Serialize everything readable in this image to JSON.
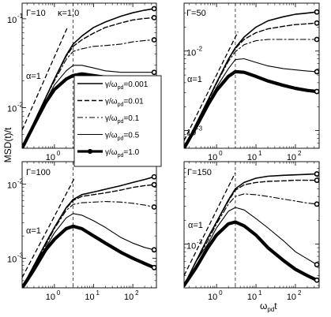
{
  "figure": {
    "ylabel": "MSD(t)/t",
    "xlabel_main": "ω",
    "xlabel_sub": "pd",
    "xlabel_tail": "t"
  },
  "legend": {
    "entries": [
      {
        "label": "γ/ω",
        "sub": "pd",
        "value": "=0.001",
        "style": "solid-thin"
      },
      {
        "label": "γ/ω",
        "sub": "pd",
        "value": "=0.01",
        "style": "dashed"
      },
      {
        "label": "γ/ω",
        "sub": "pd",
        "value": "=0.1",
        "style": "dashdot"
      },
      {
        "label": "γ/ω",
        "sub": "pd",
        "value": "=0.5",
        "style": "solid-thin"
      },
      {
        "label": "γ/ω",
        "sub": "pd",
        "value": "=1.0",
        "style": "thick-marker"
      }
    ]
  },
  "chart_data": [
    {
      "type": "line",
      "panel": "top-left",
      "annotations": [
        "Γ=10",
        "κ=1.0",
        "α=1"
      ],
      "xscale": "log",
      "yscale": "log",
      "xlim": [
        0.15,
        400
      ],
      "ylim": [
        0.0035,
        0.15
      ],
      "xticks": [
        {
          "v": 1,
          "label": "10",
          "exp": "0"
        },
        {
          "v": 10,
          "label": "10",
          "exp": "1"
        },
        {
          "v": 100,
          "label": "10",
          "exp": "2"
        }
      ],
      "yticks": [
        {
          "v": 0.01,
          "label": "10",
          "exp": "-2"
        },
        {
          "v": 0.1,
          "label": "10",
          "exp": "-1"
        }
      ],
      "vline": 3.0,
      "alpha_line": [
        [
          0.15,
          0.0056
        ],
        [
          2.2,
          0.082
        ]
      ],
      "series": [
        {
          "x": [
            0.15,
            0.3,
            0.6,
            1,
            2,
            3,
            5,
            10,
            20,
            50,
            100,
            200,
            350
          ],
          "values": [
            0.0035,
            0.0068,
            0.013,
            0.021,
            0.039,
            0.052,
            0.064,
            0.08,
            0.092,
            0.107,
            0.117,
            0.125,
            0.13
          ]
        },
        {
          "x": [
            0.15,
            0.3,
            0.6,
            1,
            2,
            3,
            5,
            10,
            20,
            50,
            100,
            200,
            350
          ],
          "values": [
            0.0035,
            0.0068,
            0.013,
            0.021,
            0.038,
            0.049,
            0.058,
            0.069,
            0.08,
            0.09,
            0.097,
            0.101,
            0.103
          ]
        },
        {
          "x": [
            0.15,
            0.3,
            0.6,
            1,
            2,
            3,
            5,
            10,
            20,
            50,
            100,
            200,
            350
          ],
          "values": [
            0.0035,
            0.0068,
            0.013,
            0.02,
            0.035,
            0.043,
            0.046,
            0.049,
            0.05,
            0.052,
            0.055,
            0.057,
            0.058
          ]
        },
        {
          "x": [
            0.15,
            0.3,
            0.6,
            1,
            2,
            3,
            5,
            10,
            20,
            50,
            100,
            200,
            350
          ],
          "values": [
            0.0035,
            0.0066,
            0.012,
            0.018,
            0.026,
            0.03,
            0.03,
            0.028,
            0.026,
            0.025,
            0.025,
            0.025,
            0.025
          ]
        },
        {
          "x": [
            0.15,
            0.3,
            0.6,
            1,
            2,
            3,
            5,
            10,
            20,
            50,
            100,
            200,
            350
          ],
          "values": [
            0.0035,
            0.0064,
            0.0115,
            0.016,
            0.021,
            0.023,
            0.024,
            0.023,
            0.022,
            0.021,
            0.0205,
            0.0205,
            0.02
          ]
        }
      ]
    },
    {
      "type": "line",
      "panel": "top-right",
      "annotations": [
        "Γ=50",
        "α=1"
      ],
      "xscale": "log",
      "yscale": "log",
      "xlim": [
        0.15,
        400
      ],
      "ylim": [
        0.0006,
        0.04
      ],
      "xticks": [
        {
          "v": 1,
          "label": "10",
          "exp": "0"
        },
        {
          "v": 10,
          "label": "10",
          "exp": "1"
        },
        {
          "v": 100,
          "label": "10",
          "exp": "2"
        }
      ],
      "yticks": [
        {
          "v": 0.001,
          "label": "10",
          "exp": "-3"
        },
        {
          "v": 0.01,
          "label": "10",
          "exp": "-2"
        }
      ],
      "vline": 3.0,
      "alpha_line": [
        [
          0.15,
          0.00075
        ],
        [
          3.5,
          0.0175
        ]
      ],
      "series": [
        {
          "x": [
            0.15,
            0.3,
            0.6,
            1,
            2,
            3,
            5,
            10,
            20,
            50,
            100,
            200,
            350
          ],
          "values": [
            0.0006,
            0.0012,
            0.0024,
            0.004,
            0.0079,
            0.011,
            0.015,
            0.02,
            0.024,
            0.027,
            0.029,
            0.03,
            0.031
          ]
        },
        {
          "x": [
            0.15,
            0.3,
            0.6,
            1,
            2,
            3,
            5,
            10,
            20,
            50,
            100,
            200,
            350
          ],
          "values": [
            0.0006,
            0.0012,
            0.0024,
            0.004,
            0.0078,
            0.0108,
            0.014,
            0.017,
            0.019,
            0.0205,
            0.0215,
            0.022,
            0.0225
          ]
        },
        {
          "x": [
            0.15,
            0.3,
            0.6,
            1,
            2,
            3,
            5,
            10,
            20,
            50,
            100,
            200,
            350
          ],
          "values": [
            0.0006,
            0.0012,
            0.0023,
            0.0039,
            0.0074,
            0.0098,
            0.012,
            0.0135,
            0.014,
            0.014,
            0.014,
            0.014,
            0.014
          ]
        },
        {
          "x": [
            0.15,
            0.3,
            0.6,
            1,
            2,
            3,
            5,
            10,
            20,
            50,
            100,
            200,
            350
          ],
          "values": [
            0.0006,
            0.0012,
            0.0022,
            0.0035,
            0.006,
            0.0078,
            0.008,
            0.0072,
            0.0065,
            0.006,
            0.0058,
            0.0056,
            0.0055
          ]
        },
        {
          "x": [
            0.15,
            0.3,
            0.6,
            1,
            2,
            3,
            5,
            10,
            20,
            50,
            100,
            200,
            350
          ],
          "values": [
            0.0006,
            0.0011,
            0.0021,
            0.0032,
            0.0048,
            0.0055,
            0.0054,
            0.0048,
            0.0042,
            0.0037,
            0.0034,
            0.0032,
            0.0031
          ]
        }
      ]
    },
    {
      "type": "line",
      "panel": "bottom-left",
      "annotations": [
        "Γ=100",
        "α=1"
      ],
      "xscale": "log",
      "yscale": "log",
      "xlim": [
        0.15,
        400
      ],
      "ylim": [
        0.0004,
        0.02
      ],
      "xticks": [
        {
          "v": 1,
          "label": "10",
          "exp": "0"
        },
        {
          "v": 10,
          "label": "10",
          "exp": "1"
        },
        {
          "v": 100,
          "label": "10",
          "exp": "2"
        }
      ],
      "yticks": [
        {
          "v": 0.001,
          "label": "10",
          "exp": "-3"
        },
        {
          "v": 0.01,
          "label": "10",
          "exp": "-2"
        }
      ],
      "vline": 3.0,
      "alpha_line": [
        [
          0.15,
          0.00055
        ],
        [
          3.2,
          0.0118
        ]
      ],
      "series": [
        {
          "x": [
            0.15,
            0.3,
            0.6,
            1,
            2,
            3,
            5,
            10,
            20,
            50,
            100,
            200,
            350
          ],
          "values": [
            0.0004,
            0.0008,
            0.0016,
            0.0026,
            0.0048,
            0.0062,
            0.0072,
            0.0078,
            0.0085,
            0.0095,
            0.0105,
            0.0115,
            0.0125
          ]
        },
        {
          "x": [
            0.15,
            0.3,
            0.6,
            1,
            2,
            3,
            5,
            10,
            20,
            50,
            100,
            200,
            350
          ],
          "values": [
            0.0004,
            0.0008,
            0.0016,
            0.0026,
            0.0047,
            0.006,
            0.0068,
            0.0072,
            0.0076,
            0.0083,
            0.009,
            0.0095,
            0.0098
          ]
        },
        {
          "x": [
            0.15,
            0.3,
            0.6,
            1,
            2,
            3,
            5,
            10,
            20,
            50,
            100,
            200,
            350
          ],
          "values": [
            0.0004,
            0.0008,
            0.0015,
            0.0025,
            0.0044,
            0.0053,
            0.0056,
            0.0057,
            0.0058,
            0.0057,
            0.0055,
            0.0052,
            0.0049
          ]
        },
        {
          "x": [
            0.15,
            0.3,
            0.6,
            1,
            2,
            3,
            5,
            10,
            20,
            50,
            100,
            200,
            350
          ],
          "values": [
            0.0004,
            0.0008,
            0.0014,
            0.0022,
            0.0035,
            0.004,
            0.0038,
            0.0032,
            0.0026,
            0.0019,
            0.0016,
            0.0014,
            0.0013
          ]
        },
        {
          "x": [
            0.15,
            0.3,
            0.6,
            1,
            2,
            3,
            5,
            10,
            20,
            50,
            100,
            200,
            350
          ],
          "values": [
            0.0004,
            0.0007,
            0.0013,
            0.0018,
            0.0025,
            0.0027,
            0.0025,
            0.002,
            0.0016,
            0.0012,
            0.001,
            0.00085,
            0.00075
          ]
        }
      ]
    },
    {
      "type": "line",
      "panel": "bottom-right",
      "annotations": [
        "Γ=150",
        "α=1"
      ],
      "xscale": "log",
      "yscale": "log",
      "xlim": [
        0.15,
        400
      ],
      "ylim": [
        0.00028,
        0.011
      ],
      "xticks": [
        {
          "v": 1,
          "label": "10",
          "exp": "0"
        },
        {
          "v": 10,
          "label": "10",
          "exp": "1"
        },
        {
          "v": 100,
          "label": "10",
          "exp": "2"
        }
      ],
      "yticks": [
        {
          "v": 0.001,
          "label": "10",
          "exp": "-3"
        }
      ],
      "vline": 3.0,
      "alpha_line": [
        [
          0.15,
          0.0004
        ],
        [
          3.0,
          0.008
        ]
      ],
      "series": [
        {
          "x": [
            0.15,
            0.3,
            0.6,
            1,
            2,
            3,
            5,
            10,
            20,
            50,
            100,
            200,
            350
          ],
          "values": [
            0.0003,
            0.0006,
            0.0012,
            0.0019,
            0.0036,
            0.005,
            0.006,
            0.0068,
            0.0072,
            0.0074,
            0.0075,
            0.0076,
            0.0077
          ]
        },
        {
          "x": [
            0.15,
            0.3,
            0.6,
            1,
            2,
            3,
            5,
            10,
            20,
            50,
            100,
            200,
            350
          ],
          "values": [
            0.0003,
            0.0006,
            0.0012,
            0.0019,
            0.0035,
            0.0048,
            0.0056,
            0.006,
            0.0062,
            0.0063,
            0.0064,
            0.0064,
            0.0064
          ]
        },
        {
          "x": [
            0.15,
            0.3,
            0.6,
            1,
            2,
            3,
            5,
            10,
            20,
            50,
            100,
            200,
            350
          ],
          "values": [
            0.0003,
            0.0006,
            0.0011,
            0.0018,
            0.0032,
            0.004,
            0.0043,
            0.0042,
            0.004,
            0.0037,
            0.0035,
            0.0033,
            0.0032
          ]
        },
        {
          "x": [
            0.15,
            0.3,
            0.6,
            1,
            2,
            3,
            5,
            10,
            20,
            50,
            100,
            200,
            350
          ],
          "values": [
            0.0003,
            0.0006,
            0.001,
            0.0016,
            0.0026,
            0.0029,
            0.0027,
            0.0021,
            0.0016,
            0.0011,
            0.0008,
            0.00065,
            0.00055
          ]
        },
        {
          "x": [
            0.15,
            0.3,
            0.6,
            1,
            2,
            3,
            5,
            10,
            20,
            50,
            100,
            200,
            350
          ],
          "values": [
            0.0003,
            0.0005,
            0.0009,
            0.0013,
            0.0018,
            0.0019,
            0.0017,
            0.0013,
            0.0009,
            0.00062,
            0.00048,
            0.0004,
            0.00035
          ]
        }
      ]
    }
  ]
}
